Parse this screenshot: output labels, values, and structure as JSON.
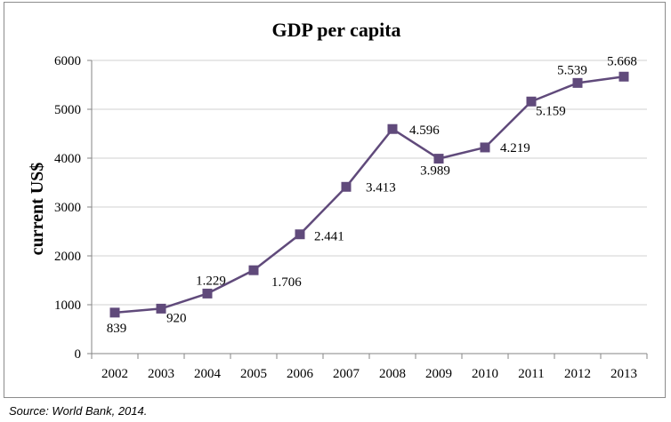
{
  "chart_data": {
    "type": "line",
    "title": "GDP per capita",
    "xlabel": "",
    "ylabel": "current US$",
    "ylim": [
      0,
      6000
    ],
    "yticks": [
      0,
      1000,
      2000,
      3000,
      4000,
      5000,
      6000
    ],
    "categories": [
      "2002",
      "2003",
      "2004",
      "2005",
      "2006",
      "2007",
      "2008",
      "2009",
      "2010",
      "2011",
      "2012",
      "2013"
    ],
    "series": [
      {
        "values": [
          839,
          920,
          1229,
          1706,
          2441,
          3413,
          4596,
          3989,
          4219,
          5159,
          5539,
          5668
        ],
        "data_labels": [
          "839",
          "920",
          "1.229",
          "1.706",
          "2.441",
          "3.413",
          "4.596",
          "3.989",
          "4.219",
          "5.159",
          "5.539",
          "5.668"
        ],
        "color": "#604a7b",
        "marker": "square"
      }
    ],
    "grid": true,
    "legend": "none"
  },
  "source_note": "Source: World Bank, 2014.",
  "colors": {
    "series_line": "#604a7b",
    "grid": "#d0d0d0",
    "axis": "#868686",
    "frame": "#8c8c8c"
  }
}
